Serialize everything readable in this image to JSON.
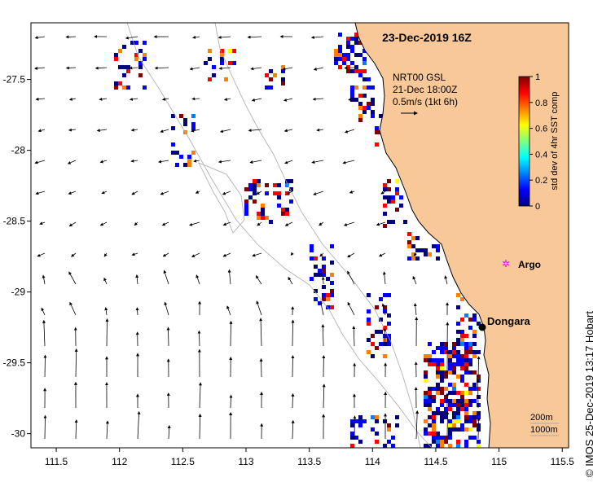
{
  "title": "23-Dec-2019 16Z",
  "credit": "© IMOS 25-Dec-2019 13:17 Hobart",
  "colors": {
    "land": "#f8c898",
    "ocean": "#ffffff",
    "coast": "#000000",
    "isobath": "#aaaaaa"
  },
  "places": [
    {
      "name": "Dongara",
      "lon": 114.93,
      "lat": -29.25,
      "marker": "black-dot"
    },
    {
      "name": "Argo",
      "lon": 115.13,
      "lat": -28.8,
      "marker": "magenta-star"
    }
  ],
  "current_legend": {
    "line1": "NRT00 GSL",
    "line2": "21-Dec 18:00Z",
    "line3": "0.5m/s (1kt 6h)"
  },
  "isobath_legend": {
    "shallow": "200m",
    "deep": "1000m"
  },
  "colorbar": {
    "label": "std dev of 4hr SST comp",
    "ticks": [
      "0",
      "0.2",
      "0.4",
      "0.6",
      "0.8",
      "1"
    ],
    "range": [
      0,
      1
    ],
    "colormap": [
      "#00007f",
      "#0000ff",
      "#007fff",
      "#00ffff",
      "#7fff7f",
      "#ffff00",
      "#ff7f00",
      "#ff0000",
      "#7f0000"
    ]
  },
  "axes": {
    "x_ticks": [
      "111.5",
      "112",
      "112.5",
      "113",
      "113.5",
      "114",
      "114.5",
      "115",
      "115.5"
    ],
    "y_ticks": [
      "-27.5",
      "-28",
      "-28.5",
      "-29",
      "-29.5",
      "-30"
    ],
    "lon_range": [
      111.3,
      115.55
    ],
    "lat_range": [
      -30.1,
      -27.1
    ]
  }
}
